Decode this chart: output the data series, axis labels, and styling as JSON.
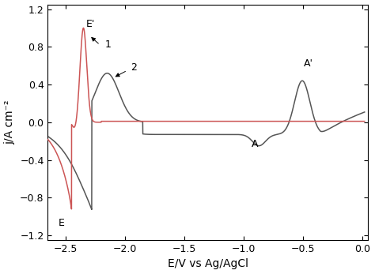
{
  "xlabel": "E/V vs Ag/AgCl",
  "ylabel": "j/A cm⁻²",
  "xlim": [
    -2.65,
    0.05
  ],
  "ylim": [
    -1.25,
    1.25
  ],
  "xticks": [
    -2.5,
    -2.0,
    -1.5,
    -1.0,
    -0.5,
    0.0
  ],
  "yticks": [
    -1.2,
    -0.8,
    -0.4,
    0.0,
    0.4,
    0.8,
    1.2
  ],
  "curve1_color": "#cc5555",
  "curve2_color": "#555555",
  "bg_color": "#ffffff"
}
